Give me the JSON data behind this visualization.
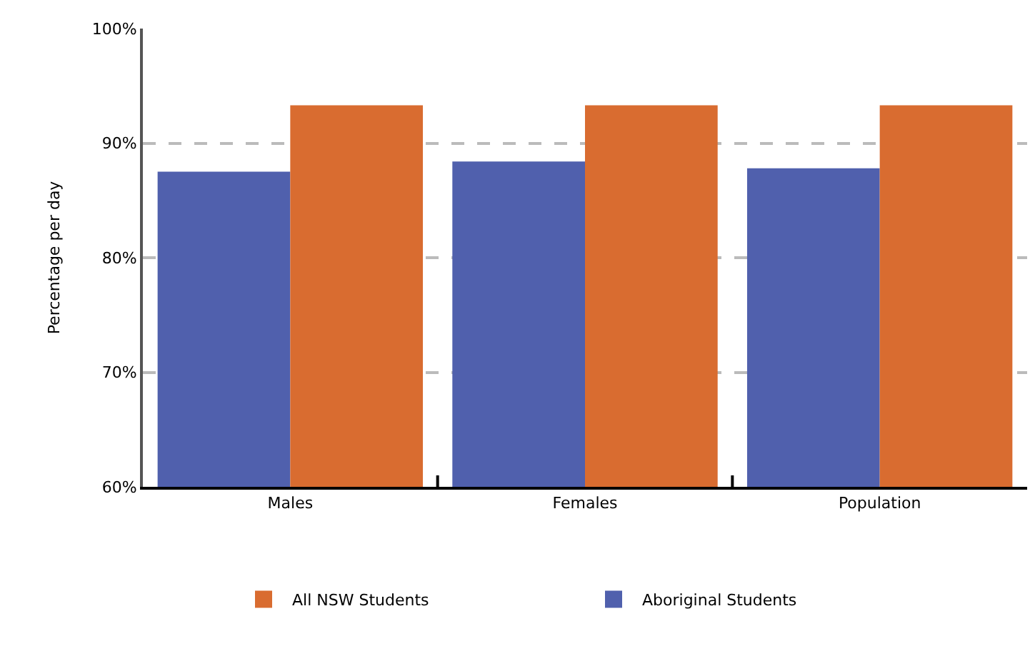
{
  "chart_data": {
    "type": "bar",
    "ylabel": "Percentage per day",
    "categories": [
      "Males",
      "Females",
      "Population"
    ],
    "series": [
      {
        "name": "Aboriginal Students",
        "color": "#5060ad",
        "values": [
          87.5,
          88.4,
          87.8
        ]
      },
      {
        "name": "All NSW Students",
        "color": "#d96c30",
        "values": [
          93.3,
          93.3,
          93.3
        ]
      }
    ],
    "ylim": [
      60,
      100
    ],
    "yticks": [
      {
        "value": 60,
        "label": "60%"
      },
      {
        "value": 70,
        "label": "70%"
      },
      {
        "value": 80,
        "label": "80%"
      },
      {
        "value": 90,
        "label": "90%"
      },
      {
        "value": 100,
        "label": "100%"
      }
    ],
    "grid": "y",
    "legend": "bottom"
  }
}
